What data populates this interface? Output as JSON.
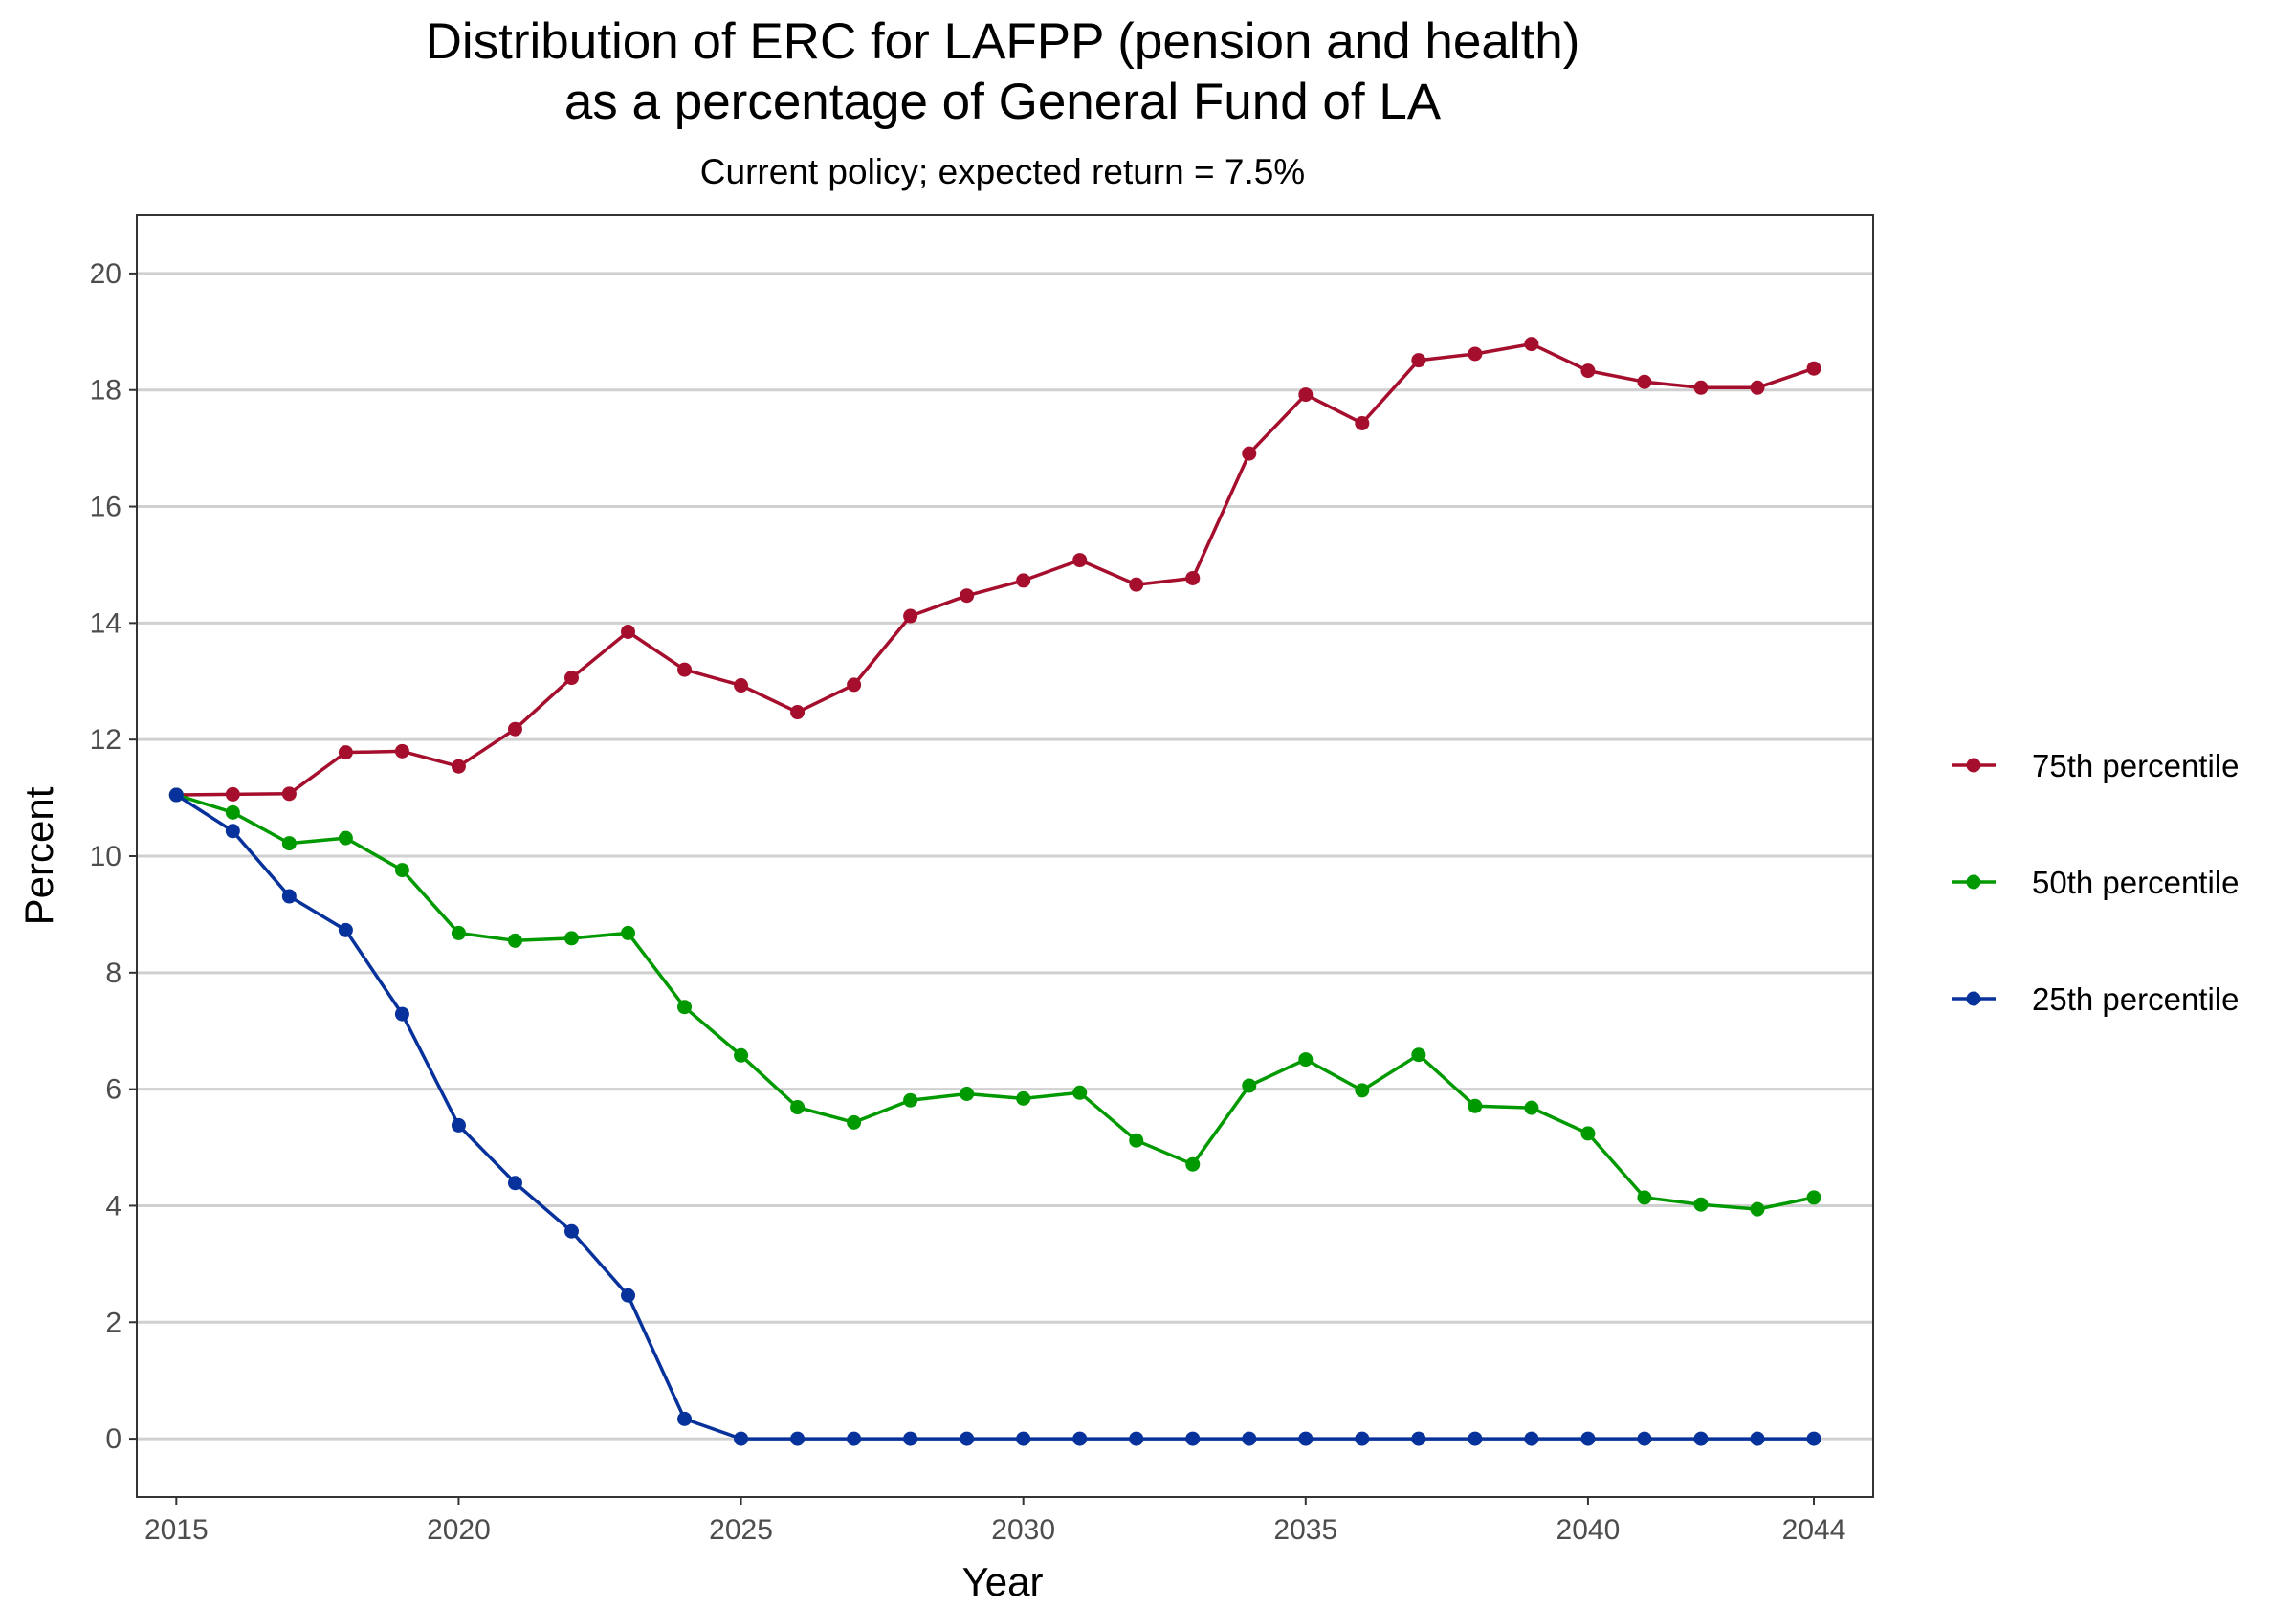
{
  "chart_data": {
    "type": "line",
    "title_line1": "Distribution of ERC for LAFPP (pension and health)",
    "title_line2": "as a percentage of General Fund of LA",
    "subtitle": "Current policy; expected return = 7.5%",
    "xlabel": "Year",
    "ylabel": "Percent",
    "x": [
      2015,
      2016,
      2017,
      2018,
      2019,
      2020,
      2021,
      2022,
      2023,
      2024,
      2025,
      2026,
      2027,
      2028,
      2029,
      2030,
      2031,
      2032,
      2033,
      2034,
      2035,
      2036,
      2037,
      2038,
      2039,
      2040,
      2041,
      2042,
      2043,
      2044
    ],
    "xlim": [
      2014.3,
      2045.05
    ],
    "ylim": [
      -1,
      21
    ],
    "x_ticks": [
      2015,
      2020,
      2025,
      2030,
      2035,
      2040,
      2044
    ],
    "y_ticks": [
      0,
      2,
      4,
      6,
      8,
      10,
      12,
      14,
      16,
      18,
      20
    ],
    "grid": "horizontal major lines",
    "legend_position": "right",
    "series": [
      {
        "name": "75th percentile",
        "color": "#A50F2D",
        "values": [
          11.05,
          11.06,
          11.07,
          11.78,
          11.8,
          11.54,
          12.18,
          13.06,
          13.85,
          13.2,
          12.93,
          12.47,
          12.94,
          14.12,
          14.47,
          14.73,
          15.08,
          14.66,
          14.77,
          16.91,
          17.92,
          17.43,
          18.51,
          18.62,
          18.79,
          18.33,
          18.14,
          18.04,
          18.04,
          18.37
        ]
      },
      {
        "name": "50th percentile",
        "color": "#009900",
        "values": [
          11.05,
          10.75,
          10.22,
          10.31,
          9.76,
          8.68,
          8.55,
          8.59,
          8.68,
          7.41,
          6.58,
          5.69,
          5.43,
          5.81,
          5.92,
          5.84,
          5.94,
          5.12,
          4.71,
          6.06,
          6.51,
          5.98,
          6.59,
          5.71,
          5.68,
          5.24,
          4.14,
          4.02,
          3.94,
          4.14
        ]
      },
      {
        "name": "25th percentile",
        "color": "#08329B",
        "values": [
          11.05,
          10.43,
          9.31,
          8.73,
          7.29,
          5.38,
          4.39,
          3.56,
          2.46,
          0.34,
          0,
          0,
          0,
          0,
          0,
          0,
          0,
          0,
          0,
          0,
          0,
          0,
          0,
          0,
          0,
          0,
          0,
          0,
          0,
          0
        ]
      }
    ]
  }
}
